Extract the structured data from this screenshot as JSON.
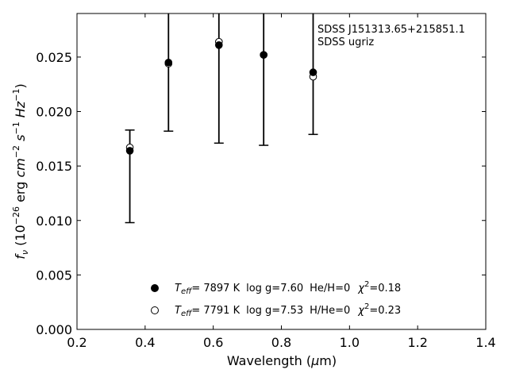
{
  "chart_data": {
    "type": "scatter",
    "title": "",
    "xlabel": "Wavelength (μm)",
    "ylabel": "f_ν (10⁻²⁶ erg cm⁻² s⁻¹ Hz⁻¹)",
    "xlim": [
      0.2,
      1.4
    ],
    "ylim": [
      0.0,
      0.029
    ],
    "xticks": [
      "0.2",
      "0.4",
      "0.6",
      "0.8",
      "1.0",
      "1.2",
      "1.4"
    ],
    "yticks": [
      "0.000",
      "0.005",
      "0.010",
      "0.015",
      "0.020",
      "0.025"
    ],
    "grid": false,
    "annotation": [
      "SDSS J151313.65+215851.1",
      "SDSS ugriz"
    ],
    "observed": {
      "x": [
        0.3551,
        0.4686,
        0.6166,
        0.748,
        0.8932
      ],
      "y": [
        0.0164,
        0.0245,
        0.0261,
        0.0252,
        0.0236
      ],
      "yerr_low": [
        0.0098,
        0.0182,
        0.0171,
        0.0169,
        0.0179
      ],
      "yerr_high": [
        0.0183,
        0.03,
        0.03,
        0.03,
        0.03
      ]
    },
    "series": [
      {
        "marker": "filled-circle",
        "x": [
          0.3551,
          0.4686,
          0.6166,
          0.748,
          0.8932
        ],
        "y": [
          0.0164,
          0.0245,
          0.0261,
          0.0252,
          0.0236
        ],
        "legend": {
          "teff_label": "T",
          "teff_sub": "eff",
          "teff_value": "=  7897 K",
          "logg": "log g=7.60",
          "composition": "He/H=0",
          "chi_label": "χ",
          "chi_value": "=0.18"
        }
      },
      {
        "marker": "open-circle",
        "x": [
          0.3551,
          0.4686,
          0.6166,
          0.748,
          0.8932
        ],
        "y": [
          0.0167,
          0.0244,
          0.0264,
          0.0252,
          0.0232
        ],
        "legend": {
          "teff_label": "T",
          "teff_sub": "eff",
          "teff_value": "=  7791 K",
          "logg": "log g=7.53",
          "composition": "H/He=0",
          "chi_label": "χ",
          "chi_value": "=0.23"
        }
      }
    ]
  }
}
